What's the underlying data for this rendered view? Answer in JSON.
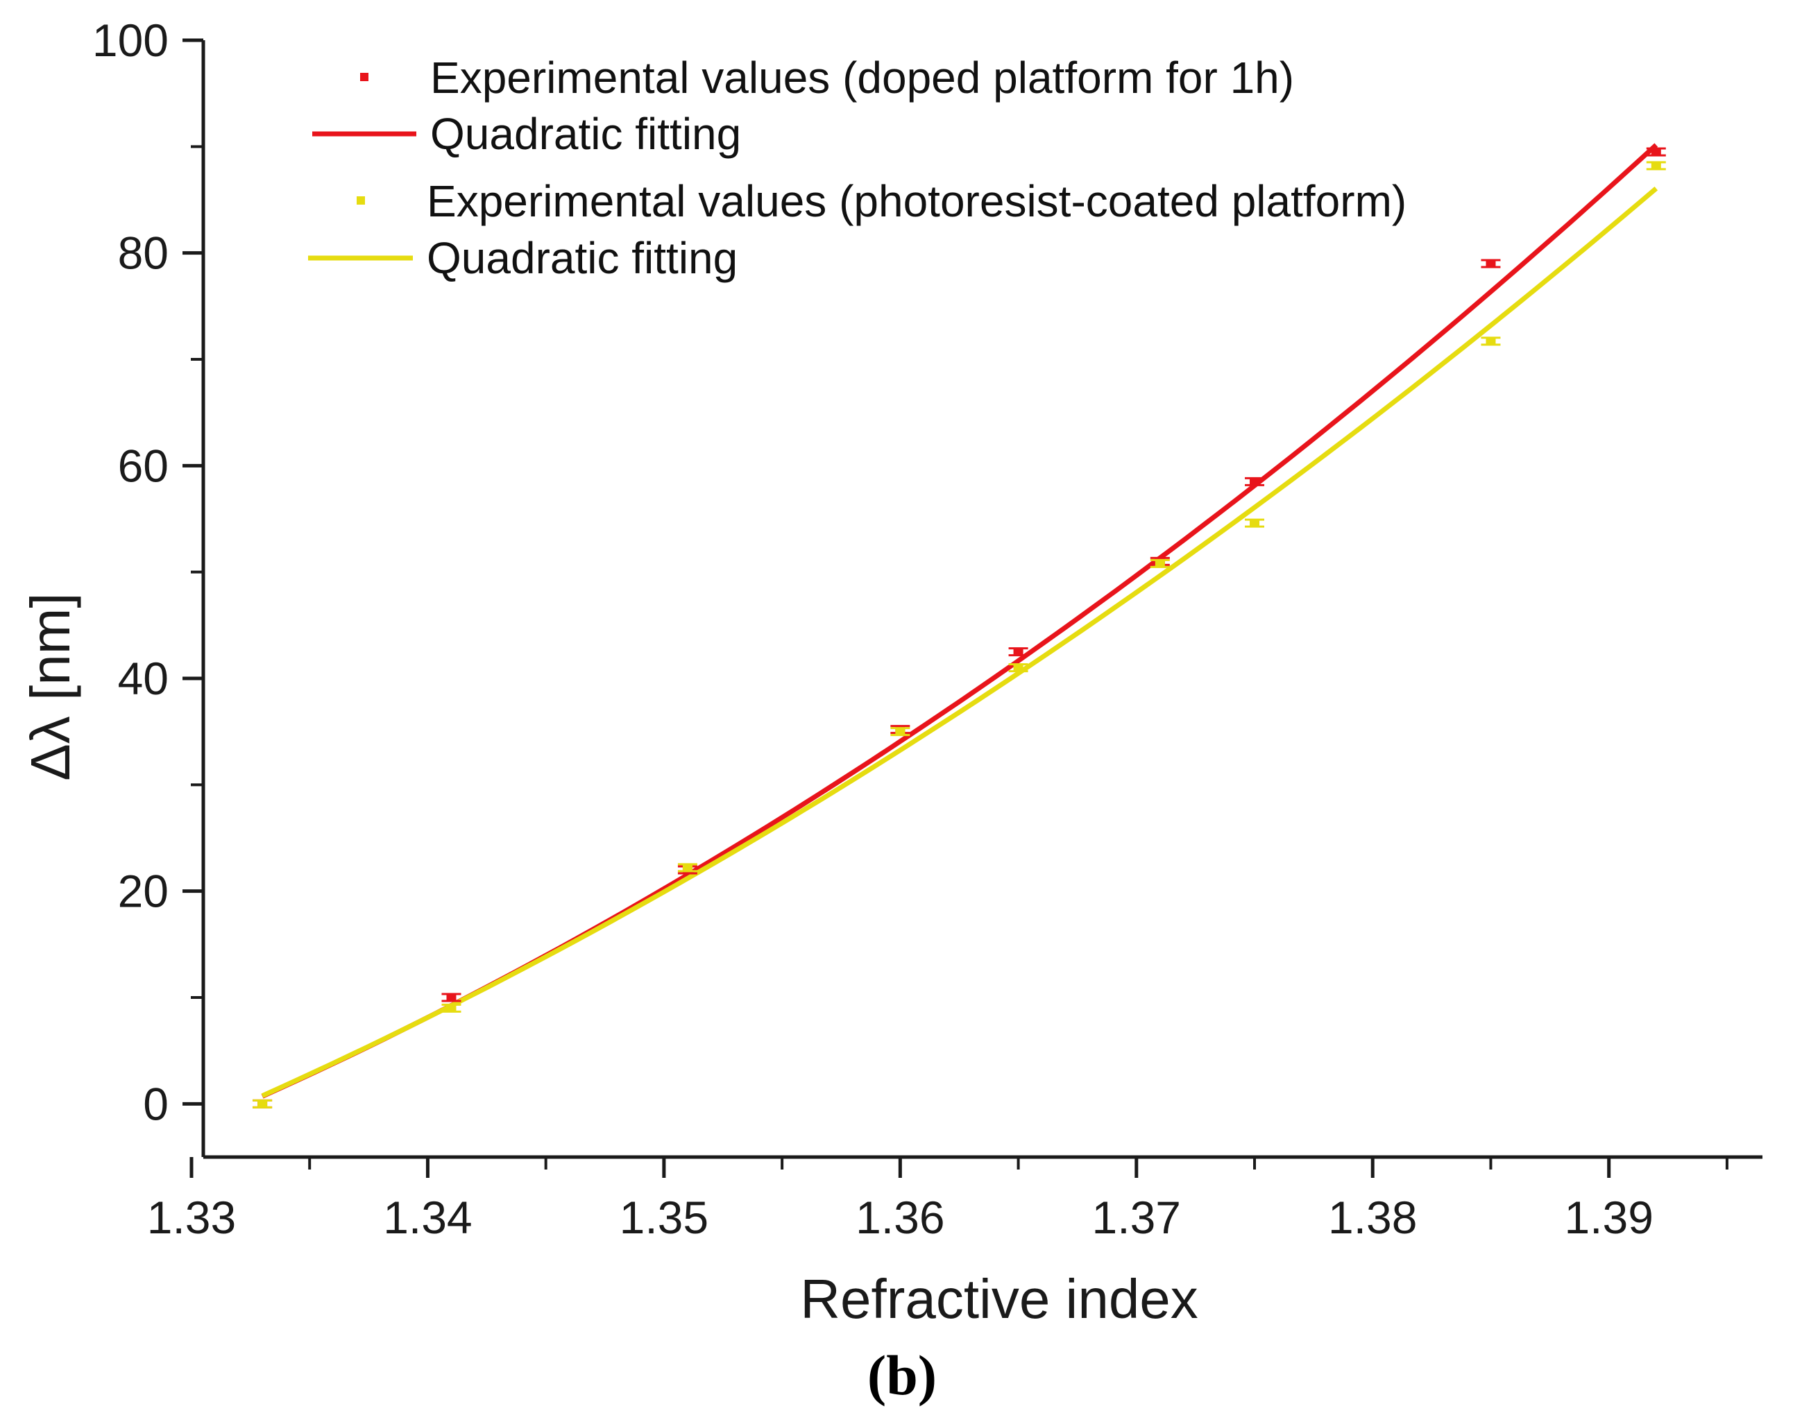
{
  "chart_data": {
    "type": "scatter",
    "title": "",
    "xlabel": "Refractive index",
    "ylabel": "Δλ [nm]",
    "panel_label": "(b)",
    "xlim": [
      1.3305,
      1.3965
    ],
    "ylim": [
      -5,
      100
    ],
    "x_ticks": [
      1.33,
      1.34,
      1.35,
      1.36,
      1.37,
      1.38,
      1.39
    ],
    "x_tick_labels": [
      "1.33",
      "1.34",
      "1.35",
      "1.36",
      "1.37",
      "1.38",
      "1.39"
    ],
    "y_ticks": [
      0,
      20,
      40,
      60,
      80,
      100
    ],
    "y_tick_labels": [
      "0",
      "20",
      "40",
      "60",
      "80",
      "100"
    ],
    "x_minor_step": 0.005,
    "y_minor_step": 10,
    "grid": false,
    "legend_position": "top-left",
    "series": [
      {
        "name": "Experimental values (doped platform for 1h)",
        "kind": "points",
        "color": "#e8141b",
        "x": [
          1.333,
          1.341,
          1.351,
          1.36,
          1.365,
          1.371,
          1.375,
          1.385,
          1.392
        ],
        "y": [
          0.0,
          10.0,
          22.0,
          35.2,
          42.5,
          51.0,
          58.5,
          79.0,
          89.5
        ]
      },
      {
        "name": "Quadratic fitting",
        "kind": "line",
        "color": "#e8141b",
        "x": [
          1.333,
          1.341,
          1.351,
          1.36,
          1.365,
          1.371,
          1.375,
          1.385,
          1.392
        ],
        "y": [
          0.3,
          9.6,
          21.9,
          34.2,
          41.7,
          51.0,
          57.8,
          76.2,
          90.5
        ]
      },
      {
        "name": "Experimental values (photoresist-coated platform)",
        "kind": "points",
        "color": "#e6dc10",
        "x": [
          1.333,
          1.341,
          1.351,
          1.36,
          1.365,
          1.371,
          1.375,
          1.385,
          1.392
        ],
        "y": [
          0.0,
          9.0,
          22.2,
          35.0,
          41.0,
          50.8,
          54.6,
          71.7,
          88.2
        ]
      },
      {
        "name": "Quadratic fitting",
        "kind": "line",
        "color": "#e6dc10",
        "x": [
          1.333,
          1.341,
          1.351,
          1.36,
          1.365,
          1.371,
          1.375,
          1.385,
          1.392
        ],
        "y": [
          0.5,
          9.4,
          21.4,
          33.5,
          40.6,
          49.4,
          55.8,
          72.8,
          86.5
        ]
      }
    ]
  }
}
